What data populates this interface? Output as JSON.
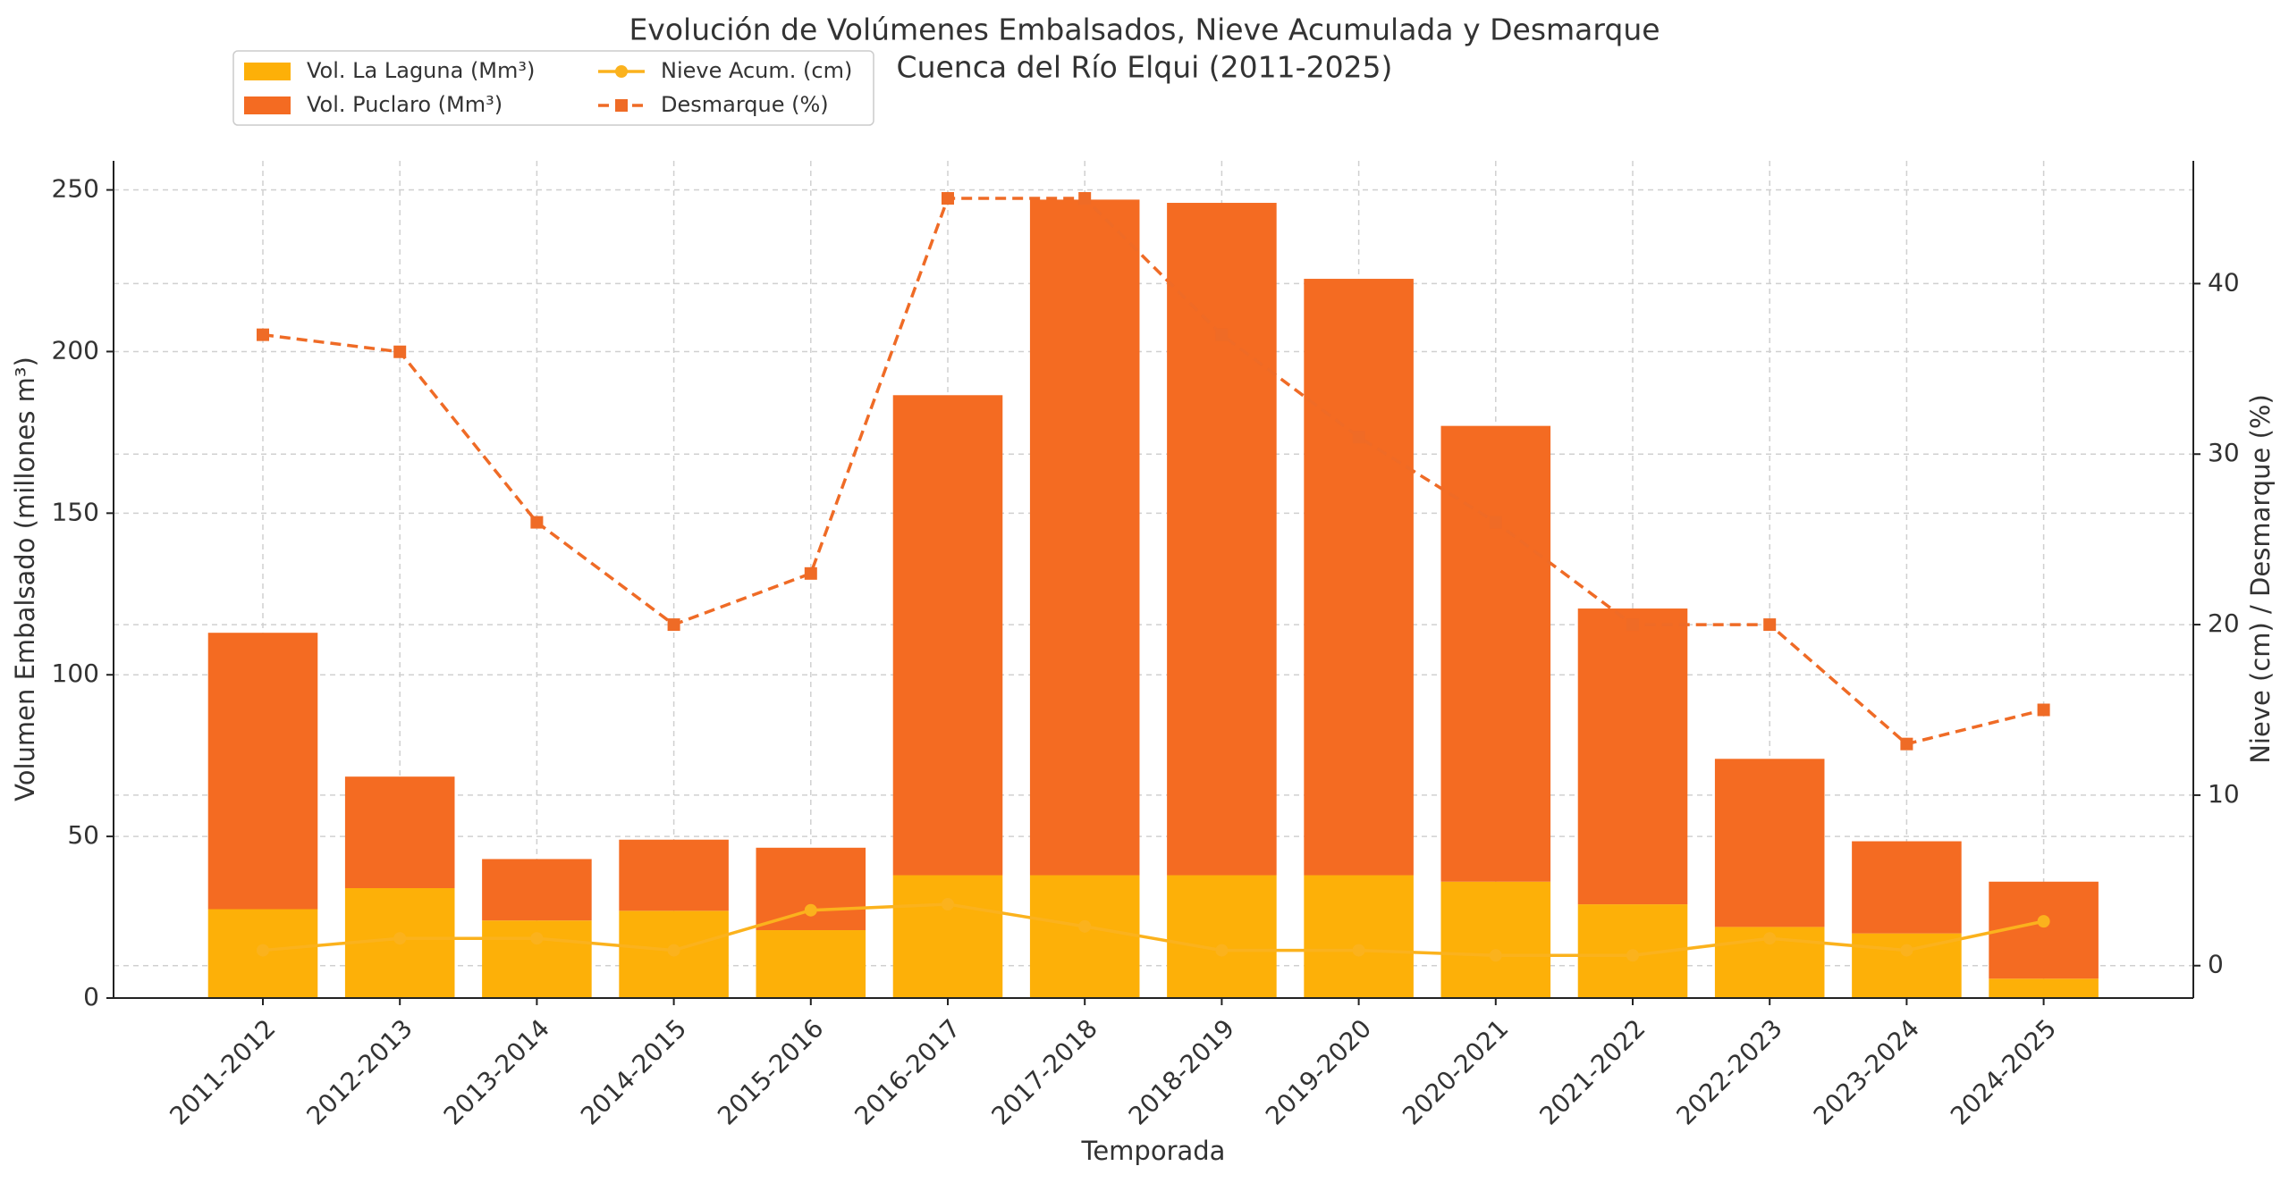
{
  "chart_data": {
    "type": "bar",
    "title": [
      "Evolución de Volúmenes Embalsados, Nieve Acumulada y Desmarque",
      "Cuenca del Río Elqui (2011-2025)"
    ],
    "x_label": "Temporada",
    "y_label": "Volumen Embalsado (millones m³)",
    "y2_label": "Nieve (cm) / Desmarque (%)",
    "categories": [
      "2011-2012",
      "2012-2013",
      "2013-2014",
      "2014-2015",
      "2015-2016",
      "2016-2017",
      "2017-2018",
      "2018-2019",
      "2019-2020",
      "2020-2021",
      "2021-2022",
      "2022-2023",
      "2023-2024",
      "2024-2025"
    ],
    "series": [
      {
        "name": "Vol. La Laguna (Mm³)",
        "type": "bar",
        "color": "#fdb008",
        "values": [
          27.5,
          34,
          24,
          27,
          21,
          38,
          38,
          38,
          38,
          36,
          29,
          22,
          20,
          6
        ]
      },
      {
        "name": "Vol. Puclaro (Mm³)",
        "type": "bar",
        "color": "#f46b22",
        "values": [
          85.5,
          34.5,
          19,
          22,
          25.5,
          148.5,
          209,
          208,
          184.5,
          141,
          91.5,
          52,
          28.5,
          30
        ]
      },
      {
        "name": "Nieve Acum. (cm)",
        "type": "line",
        "axis": "y2",
        "color": "#fbb21d",
        "marker": "circle",
        "linestyle": "solid",
        "values": [
          0.9,
          1.6,
          1.6,
          0.9,
          3.25,
          3.6,
          2.3,
          0.9,
          0.9,
          0.6,
          0.6,
          1.6,
          0.9,
          2.6
        ]
      },
      {
        "name": "Desmarque (%)",
        "type": "line",
        "axis": "y2",
        "color": "#ef6b26",
        "marker": "square",
        "linestyle": "dashed",
        "values": [
          37,
          36,
          26,
          20,
          23,
          45,
          45,
          37,
          31,
          26,
          20,
          20,
          13,
          15
        ]
      }
    ],
    "ylim": [
      0,
      259
    ],
    "yticks": [
      0,
      50,
      100,
      150,
      200,
      250
    ],
    "y2lim": [
      -1.9,
      47.2
    ],
    "y2ticks": [
      0,
      10,
      20,
      30,
      40
    ],
    "grid": true,
    "legend": "upper left"
  }
}
